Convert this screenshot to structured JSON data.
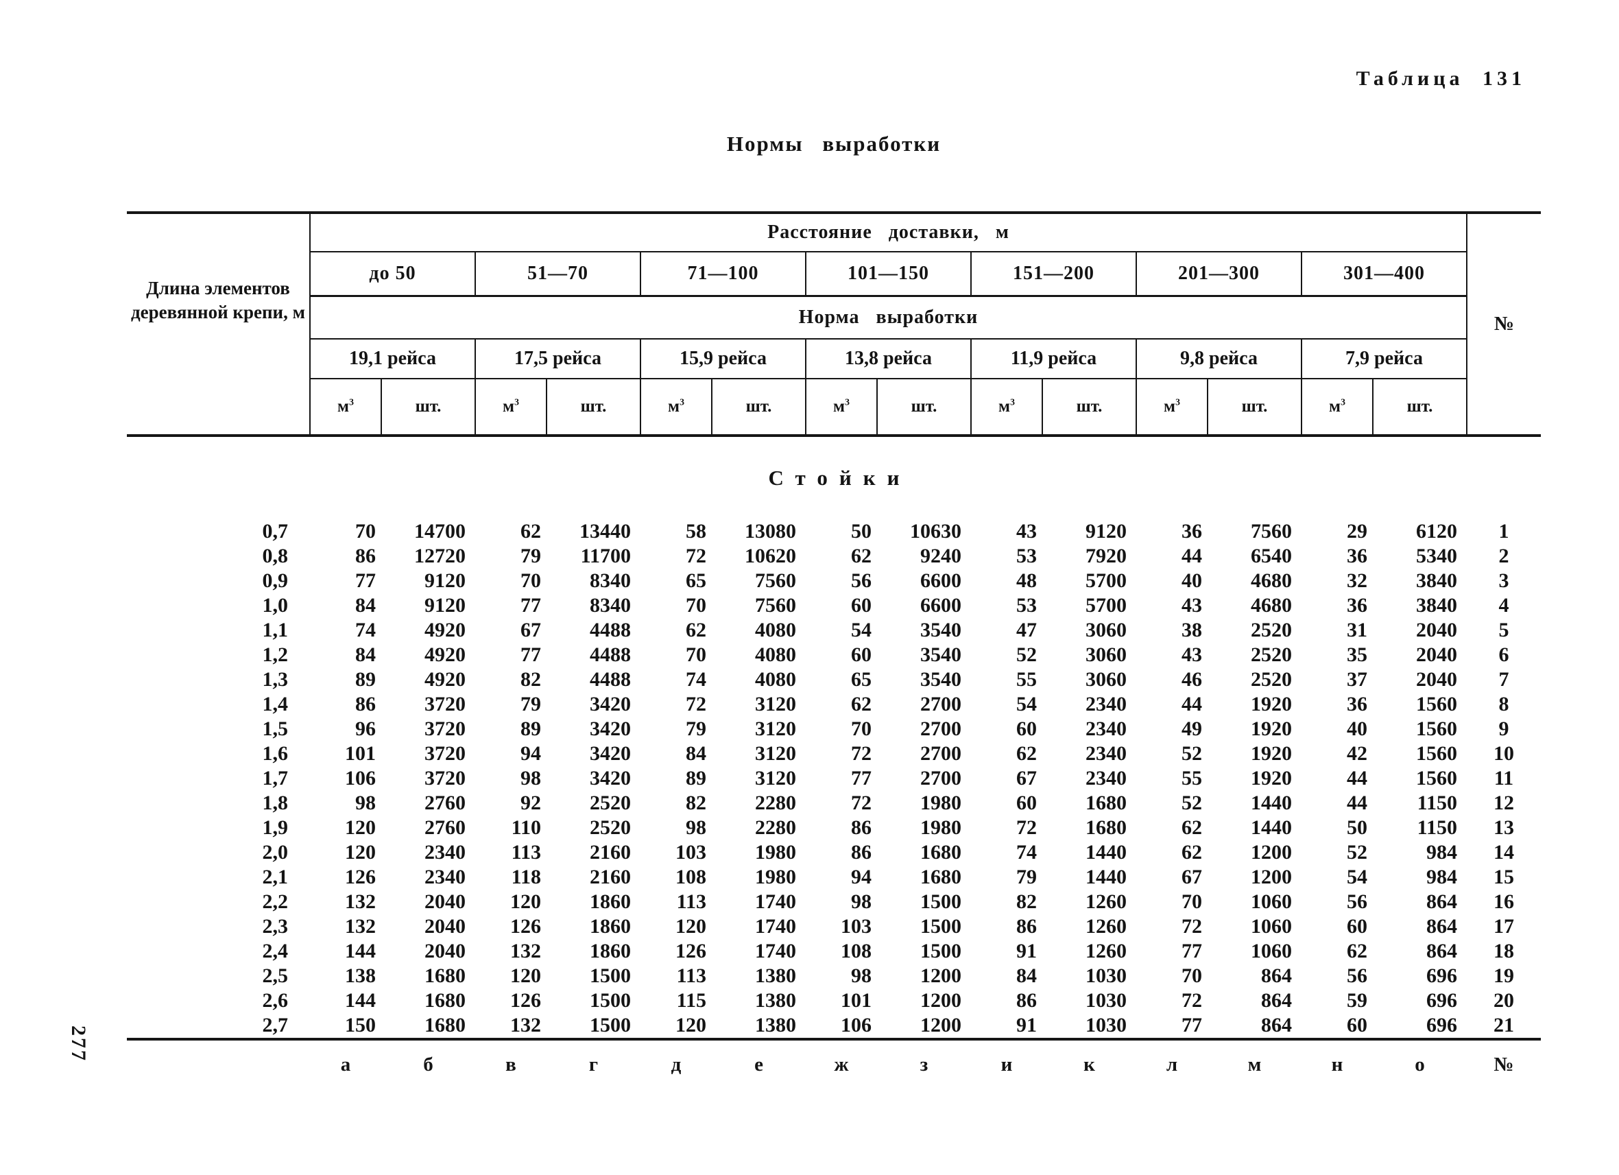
{
  "page": {
    "table_label": "Таблица 131",
    "title": "Нормы выработки",
    "section_title": "Стойки",
    "page_number": "277"
  },
  "header": {
    "length_label": "Длина элементов деревянной крепи, м",
    "distance_label": "Расстояние доставки, м",
    "norm_label": "Норма выработки",
    "num_label": "№",
    "distances": [
      "до 50",
      "51—70",
      "71—100",
      "101—150",
      "151—200",
      "201—300",
      "301—400"
    ],
    "trips": [
      "19,1 рейса",
      "17,5 рейса",
      "15,9 рейса",
      "13,8 рейса",
      "11,9 рейса",
      "9,8 рейса",
      "7,9 рейса"
    ],
    "unit_m3_base": "м",
    "unit_m3_sup": "3",
    "unit_pcs": "шт."
  },
  "rows": [
    {
      "length": "0,7",
      "values": [
        70,
        14700,
        62,
        13440,
        58,
        13080,
        50,
        10630,
        43,
        9120,
        36,
        7560,
        29,
        6120
      ],
      "num": 1
    },
    {
      "length": "0,8",
      "values": [
        86,
        12720,
        79,
        11700,
        72,
        10620,
        62,
        9240,
        53,
        7920,
        44,
        6540,
        36,
        5340
      ],
      "num": 2
    },
    {
      "length": "0,9",
      "values": [
        77,
        9120,
        70,
        8340,
        65,
        7560,
        56,
        6600,
        48,
        5700,
        40,
        4680,
        32,
        3840
      ],
      "num": 3
    },
    {
      "length": "1,0",
      "values": [
        84,
        9120,
        77,
        8340,
        70,
        7560,
        60,
        6600,
        53,
        5700,
        43,
        4680,
        36,
        3840
      ],
      "num": 4
    },
    {
      "length": "1,1",
      "values": [
        74,
        4920,
        67,
        4488,
        62,
        4080,
        54,
        3540,
        47,
        3060,
        38,
        2520,
        31,
        2040
      ],
      "num": 5
    },
    {
      "length": "1,2",
      "values": [
        84,
        4920,
        77,
        4488,
        70,
        4080,
        60,
        3540,
        52,
        3060,
        43,
        2520,
        35,
        2040
      ],
      "num": 6
    },
    {
      "length": "1,3",
      "values": [
        89,
        4920,
        82,
        4488,
        74,
        4080,
        65,
        3540,
        55,
        3060,
        46,
        2520,
        37,
        2040
      ],
      "num": 7
    },
    {
      "length": "1,4",
      "values": [
        86,
        3720,
        79,
        3420,
        72,
        3120,
        62,
        2700,
        54,
        2340,
        44,
        1920,
        36,
        1560
      ],
      "num": 8
    },
    {
      "length": "1,5",
      "values": [
        96,
        3720,
        89,
        3420,
        79,
        3120,
        70,
        2700,
        60,
        2340,
        49,
        1920,
        40,
        1560
      ],
      "num": 9
    },
    {
      "length": "1,6",
      "values": [
        101,
        3720,
        94,
        3420,
        84,
        3120,
        72,
        2700,
        62,
        2340,
        52,
        1920,
        42,
        1560
      ],
      "num": 10
    },
    {
      "length": "1,7",
      "values": [
        106,
        3720,
        98,
        3420,
        89,
        3120,
        77,
        2700,
        67,
        2340,
        55,
        1920,
        44,
        1560
      ],
      "num": 11
    },
    {
      "length": "1,8",
      "values": [
        98,
        2760,
        92,
        2520,
        82,
        2280,
        72,
        1980,
        60,
        1680,
        52,
        1440,
        44,
        1150
      ],
      "num": 12
    },
    {
      "length": "1,9",
      "values": [
        120,
        2760,
        110,
        2520,
        98,
        2280,
        86,
        1980,
        72,
        1680,
        62,
        1440,
        50,
        1150
      ],
      "num": 13
    },
    {
      "length": "2,0",
      "values": [
        120,
        2340,
        113,
        2160,
        103,
        1980,
        86,
        1680,
        74,
        1440,
        62,
        1200,
        52,
        984
      ],
      "num": 14
    },
    {
      "length": "2,1",
      "values": [
        126,
        2340,
        118,
        2160,
        108,
        1980,
        94,
        1680,
        79,
        1440,
        67,
        1200,
        54,
        984
      ],
      "num": 15
    },
    {
      "length": "2,2",
      "values": [
        132,
        2040,
        120,
        1860,
        113,
        1740,
        98,
        1500,
        82,
        1260,
        70,
        1060,
        56,
        864
      ],
      "num": 16
    },
    {
      "length": "2,3",
      "values": [
        132,
        2040,
        126,
        1860,
        120,
        1740,
        103,
        1500,
        86,
        1260,
        72,
        1060,
        60,
        864
      ],
      "num": 17
    },
    {
      "length": "2,4",
      "values": [
        144,
        2040,
        132,
        1860,
        126,
        1740,
        108,
        1500,
        91,
        1260,
        77,
        1060,
        62,
        864
      ],
      "num": 18
    },
    {
      "length": "2,5",
      "values": [
        138,
        1680,
        120,
        1500,
        113,
        1380,
        98,
        1200,
        84,
        1030,
        70,
        864,
        56,
        696
      ],
      "num": 19
    },
    {
      "length": "2,6",
      "values": [
        144,
        1680,
        126,
        1500,
        115,
        1380,
        101,
        1200,
        86,
        1030,
        72,
        864,
        59,
        696
      ],
      "num": 20
    },
    {
      "length": "2,7",
      "values": [
        150,
        1680,
        132,
        1500,
        120,
        1380,
        106,
        1200,
        91,
        1030,
        77,
        864,
        60,
        696
      ],
      "num": 21
    }
  ],
  "footer": {
    "letters": [
      "а",
      "б",
      "в",
      "г",
      "д",
      "е",
      "ж",
      "з",
      "и",
      "к",
      "л",
      "м",
      "н",
      "о"
    ],
    "num_label": "№"
  }
}
